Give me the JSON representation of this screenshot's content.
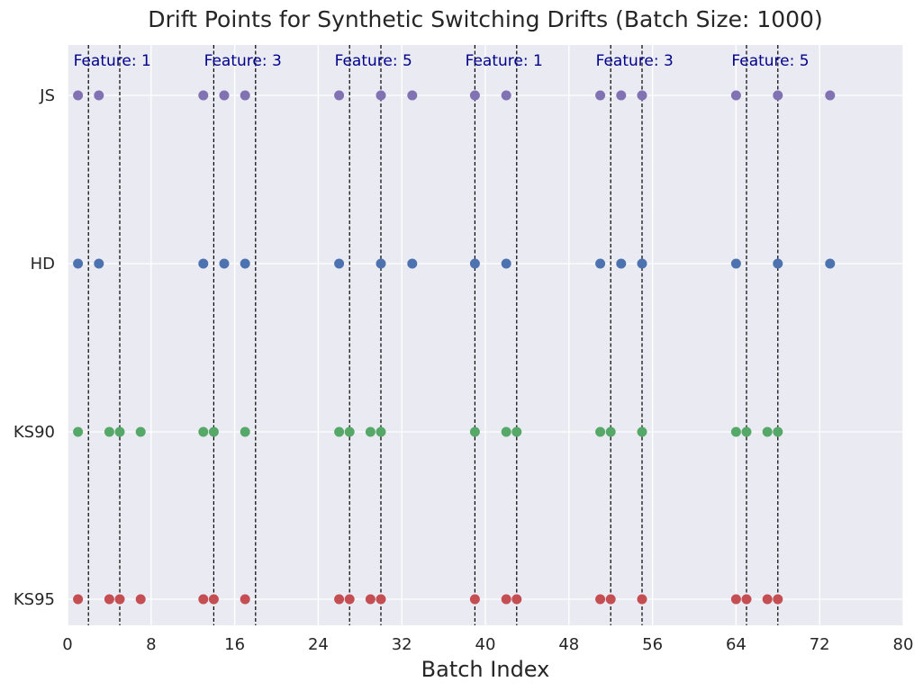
{
  "chart_data": {
    "type": "scatter",
    "title": "Drift Points for Synthetic Switching Drifts (Batch Size: 1000)",
    "xlabel": "Batch Index",
    "ylabel": "",
    "xlim": [
      0,
      80
    ],
    "xticks": [
      0,
      8,
      16,
      24,
      32,
      40,
      48,
      56,
      64,
      72,
      80
    ],
    "categories": [
      "JS",
      "HD",
      "KS90",
      "KS95"
    ],
    "grid": true,
    "colors": {
      "background": "#eaeaf2",
      "JS": "#8172b3",
      "HD": "#4c72b0",
      "KS90": "#55a868",
      "KS95": "#c44e52",
      "drift_line": "#000000",
      "annotation": "#00008b"
    },
    "drift_lines": [
      2,
      5,
      14,
      18,
      27,
      30,
      39,
      43,
      52,
      55,
      65,
      68
    ],
    "annotations": [
      {
        "x": 1,
        "label": "Feature: 1"
      },
      {
        "x": 3,
        "label": "Feature: 3"
      },
      {
        "x": 5,
        "label": "Feature: 5"
      },
      {
        "x": 1,
        "label": "Feature: 1"
      },
      {
        "x": 3,
        "label": "Feature: 3"
      },
      {
        "x": 5,
        "label": "Feature: 5"
      }
    ],
    "annotation_x_positions": [
      1,
      13.5,
      26,
      38.5,
      51,
      64
    ],
    "series": [
      {
        "name": "JS",
        "x": [
          1,
          3,
          13,
          15,
          17,
          26,
          30,
          33,
          39,
          42,
          51,
          53,
          55,
          64,
          68,
          73
        ]
      },
      {
        "name": "HD",
        "x": [
          1,
          3,
          13,
          15,
          17,
          26,
          30,
          33,
          39,
          42,
          51,
          53,
          55,
          64,
          68,
          73
        ]
      },
      {
        "name": "KS90",
        "x": [
          1,
          4,
          5,
          7,
          13,
          14,
          17,
          26,
          27,
          29,
          30,
          39,
          42,
          43,
          51,
          52,
          55,
          64,
          65,
          67,
          68
        ]
      },
      {
        "name": "KS95",
        "x": [
          1,
          4,
          5,
          7,
          13,
          14,
          17,
          26,
          27,
          29,
          30,
          39,
          42,
          43,
          51,
          52,
          55,
          64,
          65,
          67,
          68
        ]
      }
    ]
  }
}
